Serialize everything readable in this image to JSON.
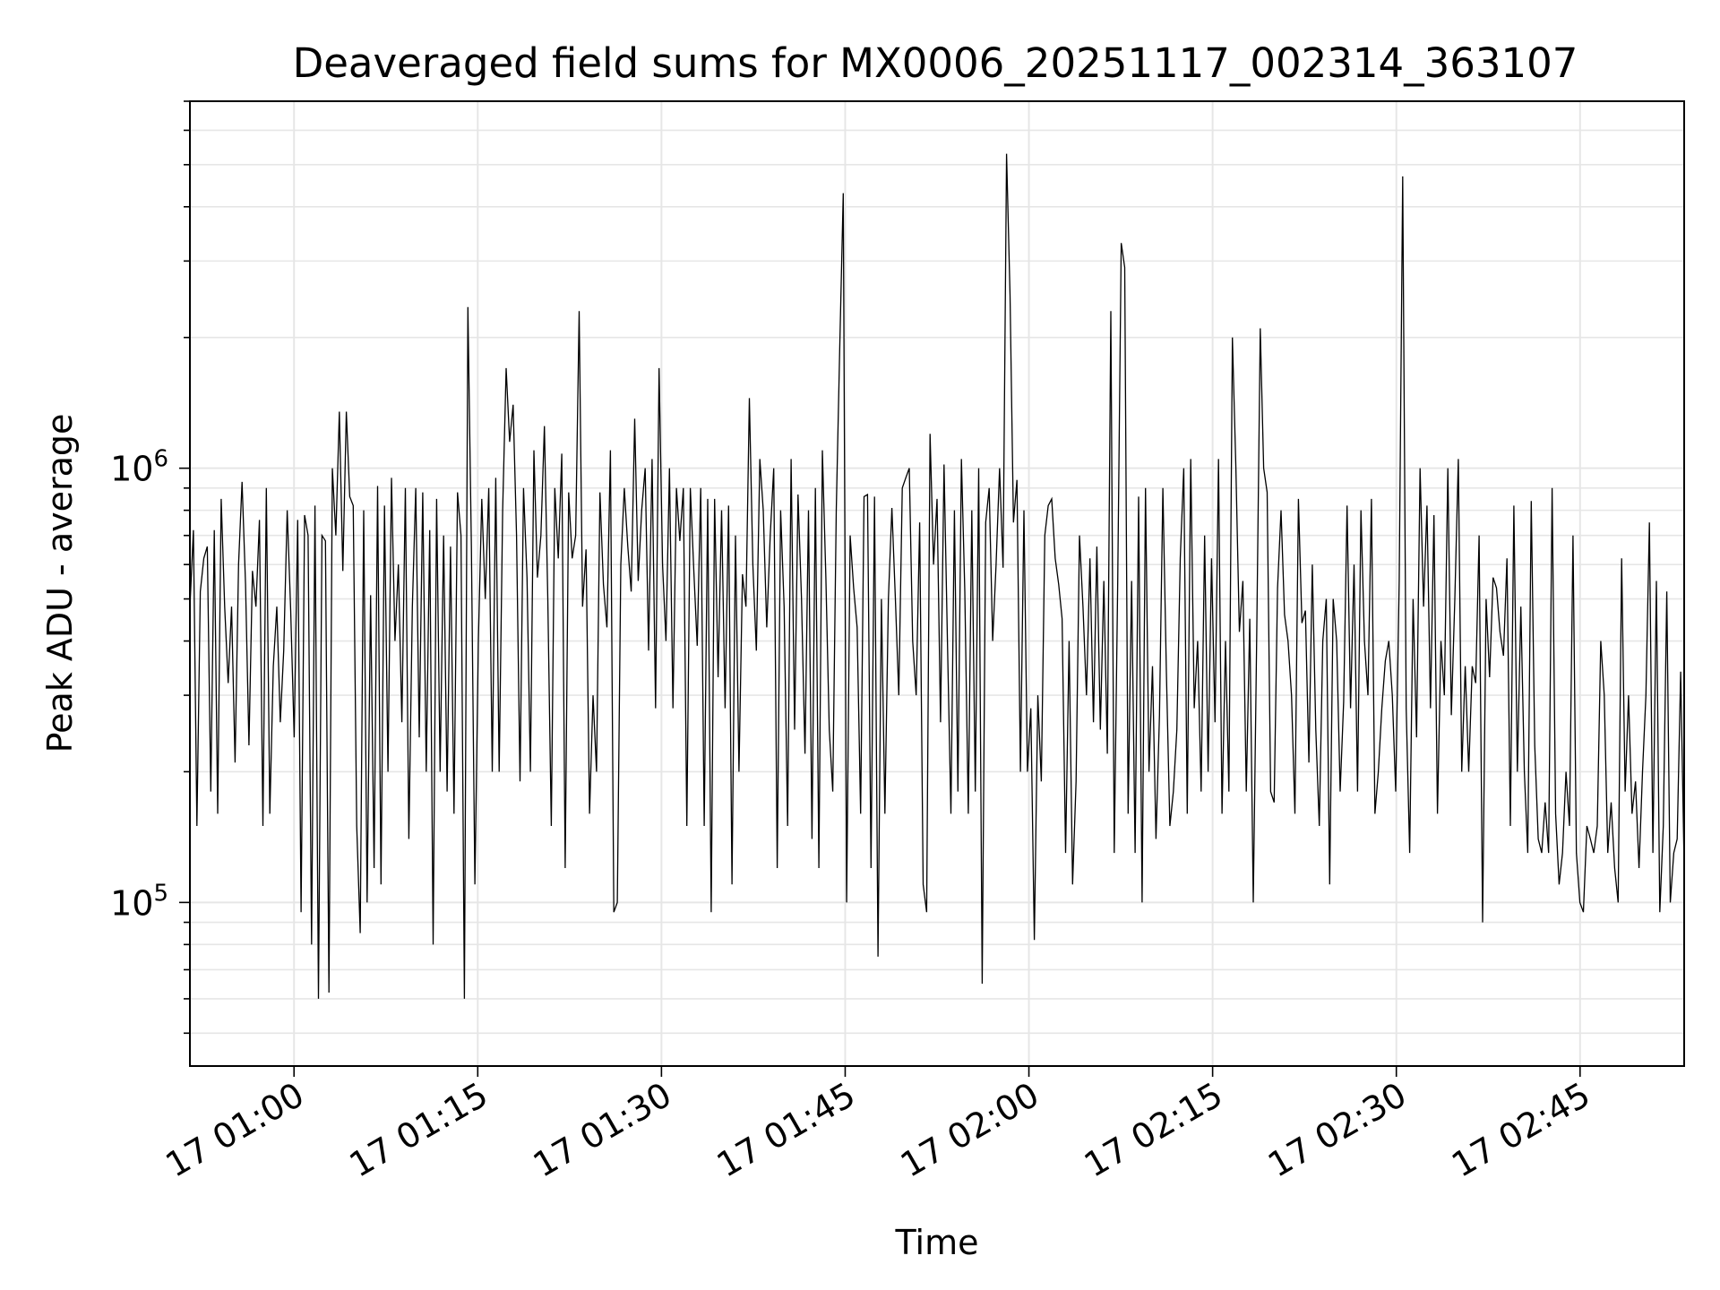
{
  "chart_data": {
    "type": "line",
    "title": "Deaveraged field sums for MX0006_20251117_002314_363107",
    "xlabel": "Time",
    "ylabel": "Peak ADU - average",
    "yscale": "log",
    "grid": true,
    "line_color": "#000000",
    "grid_color": "#e6e6e6",
    "xlim": [
      "17 00:51:30",
      "17 02:53:30"
    ],
    "ylim": [
      42000,
      7000000
    ],
    "x_tick_labels": [
      "17 01:00",
      "17 01:15",
      "17 01:30",
      "17 01:45",
      "17 02:00",
      "17 02:15",
      "17 02:30",
      "17 02:45"
    ],
    "y_tick_labels": [
      {
        "base": "10",
        "exp": "5",
        "value": 100000
      },
      {
        "base": "10",
        "exp": "6",
        "value": 1000000
      }
    ],
    "series": [
      {
        "x_start": "17 00:51:30",
        "x_end": "17 02:53:30",
        "values": [
          480000,
          720000,
          150000,
          520000,
          620000,
          660000,
          180000,
          720000,
          160000,
          850000,
          480000,
          320000,
          480000,
          210000,
          600000,
          930000,
          540000,
          230000,
          580000,
          480000,
          760000,
          150000,
          900000,
          160000,
          350000,
          480000,
          260000,
          380000,
          800000,
          470000,
          240000,
          760000,
          95000,
          780000,
          700000,
          80000,
          820000,
          60000,
          700000,
          680000,
          62000,
          1000000,
          700000,
          1350000,
          580000,
          1350000,
          860000,
          820000,
          150000,
          85000,
          800000,
          100000,
          510000,
          120000,
          910000,
          110000,
          820000,
          200000,
          950000,
          400000,
          600000,
          260000,
          900000,
          140000,
          480000,
          900000,
          240000,
          880000,
          200000,
          720000,
          80000,
          850000,
          200000,
          700000,
          180000,
          660000,
          160000,
          880000,
          700000,
          60000,
          2350000,
          660000,
          110000,
          400000,
          850000,
          500000,
          900000,
          200000,
          950000,
          200000,
          800000,
          1700000,
          1150000,
          1400000,
          700000,
          190000,
          900000,
          560000,
          200000,
          1100000,
          560000,
          700000,
          1250000,
          500000,
          150000,
          900000,
          620000,
          1080000,
          120000,
          880000,
          620000,
          700000,
          2300000,
          480000,
          650000,
          160000,
          300000,
          200000,
          880000,
          540000,
          430000,
          1100000,
          95000,
          100000,
          600000,
          900000,
          660000,
          520000,
          1300000,
          550000,
          800000,
          1000000,
          380000,
          1050000,
          280000,
          1700000,
          600000,
          400000,
          1000000,
          280000,
          900000,
          680000,
          900000,
          150000,
          900000,
          580000,
          390000,
          900000,
          150000,
          850000,
          95000,
          850000,
          330000,
          800000,
          280000,
          820000,
          110000,
          700000,
          200000,
          570000,
          480000,
          1450000,
          600000,
          380000,
          1050000,
          800000,
          430000,
          700000,
          1000000,
          120000,
          800000,
          480000,
          150000,
          1050000,
          250000,
          870000,
          500000,
          220000,
          800000,
          140000,
          900000,
          120000,
          1100000,
          560000,
          250000,
          180000,
          800000,
          1900000,
          4300000,
          100000,
          700000,
          530000,
          430000,
          160000,
          860000,
          870000,
          120000,
          860000,
          75000,
          500000,
          160000,
          500000,
          810000,
          500000,
          300000,
          900000,
          950000,
          1000000,
          400000,
          300000,
          750000,
          110000,
          95000,
          1200000,
          600000,
          850000,
          260000,
          1020000,
          400000,
          160000,
          800000,
          180000,
          1050000,
          520000,
          160000,
          800000,
          180000,
          1000000,
          65000,
          750000,
          900000,
          400000,
          600000,
          1000000,
          590000,
          5300000,
          2500000,
          750000,
          940000,
          200000,
          800000,
          200000,
          280000,
          82000,
          300000,
          190000,
          700000,
          820000,
          850000,
          620000,
          540000,
          450000,
          130000,
          400000,
          110000,
          190000,
          700000,
          480000,
          300000,
          620000,
          260000,
          660000,
          250000,
          550000,
          220000,
          2300000,
          130000,
          550000,
          3300000,
          2900000,
          160000,
          550000,
          130000,
          860000,
          100000,
          900000,
          200000,
          350000,
          140000,
          270000,
          900000,
          340000,
          150000,
          180000,
          250000,
          620000,
          1000000,
          160000,
          1050000,
          280000,
          400000,
          180000,
          700000,
          200000,
          620000,
          260000,
          1050000,
          160000,
          400000,
          180000,
          2000000,
          1000000,
          420000,
          550000,
          180000,
          450000,
          100000,
          420000,
          2100000,
          1000000,
          880000,
          180000,
          170000,
          530000,
          800000,
          460000,
          400000,
          300000,
          160000,
          850000,
          440000,
          470000,
          210000,
          600000,
          250000,
          150000,
          400000,
          500000,
          110000,
          500000,
          400000,
          180000,
          290000,
          820000,
          280000,
          600000,
          180000,
          800000,
          400000,
          300000,
          850000,
          160000,
          200000,
          280000,
          360000,
          400000,
          300000,
          180000,
          550000,
          4700000,
          280000,
          130000,
          500000,
          240000,
          1000000,
          480000,
          820000,
          280000,
          780000,
          160000,
          400000,
          300000,
          1000000,
          270000,
          500000,
          1050000,
          200000,
          350000,
          200000,
          350000,
          320000,
          700000,
          90000,
          500000,
          330000,
          560000,
          530000,
          420000,
          370000,
          620000,
          150000,
          820000,
          200000,
          480000,
          200000,
          130000,
          840000,
          230000,
          140000,
          130000,
          170000,
          130000,
          900000,
          160000,
          110000,
          130000,
          200000,
          150000,
          700000,
          130000,
          100000,
          95000,
          150000,
          140000,
          130000,
          150000,
          400000,
          300000,
          130000,
          170000,
          120000,
          100000,
          620000,
          180000,
          300000,
          160000,
          190000,
          120000,
          200000,
          300000,
          750000,
          130000,
          550000,
          95000,
          150000,
          520000,
          100000,
          130000,
          140000,
          340000,
          120000
        ]
      }
    ]
  }
}
